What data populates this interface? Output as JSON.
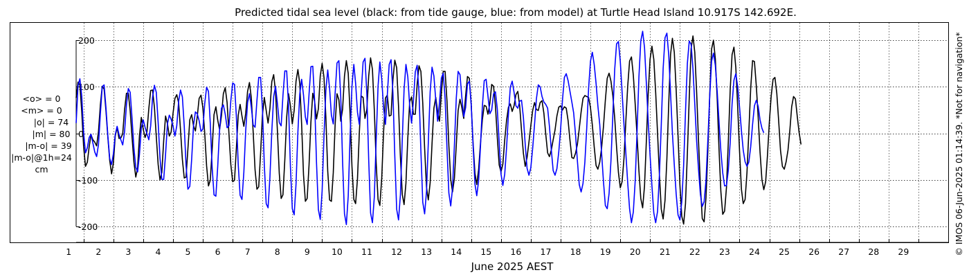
{
  "chart_data": {
    "type": "line",
    "title": "Predicted tidal sea level (black: from tide gauge, blue: from model) at Turtle Head Island 10.917S 142.692E.",
    "xlabel": "June 2025 AEST",
    "ylabel": "",
    "xlim": [
      0.75,
      30
    ],
    "ylim": [
      -200,
      200
    ],
    "y_ticks": [
      "200",
      "100",
      "0",
      "-100",
      "-200"
    ],
    "x_ticks": [
      "1",
      "2",
      "3",
      "4",
      "5",
      "6",
      "7",
      "8",
      "9",
      "10",
      "11",
      "12",
      "13",
      "14",
      "15",
      "16",
      "17",
      "18",
      "19",
      "20",
      "21",
      "22",
      "23",
      "24",
      "25",
      "26",
      "27",
      "28",
      "29"
    ],
    "grid": true,
    "series": [
      {
        "name": "from tide gauge",
        "color": "#000000",
        "t0": 0.75,
        "dt": 0.0625,
        "y": [
          76,
          110,
          104,
          47,
          -28,
          -71,
          -62,
          -29,
          -3,
          -14,
          -19,
          -27,
          4,
          61,
          101,
          95,
          48,
          -8,
          -58,
          -87,
          -64,
          -6,
          13,
          -11,
          -10,
          -1,
          51,
          86,
          86,
          48,
          -9,
          -62,
          -94,
          -74,
          -5,
          34,
          9,
          -9,
          3,
          53,
          92,
          93,
          56,
          -7,
          -67,
          -100,
          -84,
          -16,
          37,
          21,
          -6,
          3,
          43,
          75,
          83,
          65,
          7,
          -56,
          -96,
          -94,
          -33,
          29,
          40,
          16,
          5,
          36,
          75,
          82,
          55,
          0,
          -70,
          -113,
          -101,
          -35,
          40,
          57,
          28,
          8,
          38,
          85,
          98,
          66,
          -1,
          -67,
          -104,
          -101,
          -32,
          39,
          62,
          37,
          15,
          43,
          90,
          109,
          76,
          2,
          -78,
          -120,
          -115,
          -43,
          40,
          77,
          49,
          22,
          53,
          111,
          126,
          89,
          5,
          -86,
          -140,
          -132,
          -57,
          35,
          85,
          59,
          20,
          49,
          112,
          137,
          107,
          19,
          -89,
          -146,
          -140,
          -68,
          24,
          86,
          68,
          31,
          53,
          123,
          150,
          120,
          35,
          -81,
          -143,
          -146,
          -85,
          19,
          85,
          72,
          26,
          52,
          123,
          156,
          129,
          42,
          -71,
          -142,
          -151,
          -97,
          3,
          80,
          77,
          32,
          51,
          123,
          162,
          137,
          50,
          -64,
          -142,
          -155,
          -97,
          3,
          76,
          82,
          37,
          39,
          115,
          157,
          141,
          58,
          -51,
          -131,
          -153,
          -107,
          -10,
          68,
          78,
          41,
          41,
          106,
          145,
          133,
          65,
          -32,
          -116,
          -143,
          -106,
          -22,
          54,
          77,
          46,
          26,
          87,
          133,
          133,
          69,
          -26,
          -99,
          -126,
          -97,
          -26,
          49,
          73,
          55,
          32,
          80,
          122,
          118,
          61,
          -21,
          -86,
          -110,
          -78,
          -21,
          29,
          60,
          58,
          41,
          64,
          105,
          101,
          59,
          -9,
          -68,
          -83,
          -66,
          -14,
          28,
          56,
          63,
          47,
          59,
          83,
          90,
          59,
          6,
          -43,
          -71,
          -52,
          -19,
          16,
          49,
          66,
          51,
          49,
          66,
          70,
          43,
          -2,
          -42,
          -50,
          -36,
          -14,
          7,
          37,
          56,
          59,
          50,
          57,
          54,
          27,
          -15,
          -52,
          -54,
          -43,
          -24,
          10,
          46,
          75,
          81,
          79,
          77,
          55,
          18,
          -29,
          -69,
          -77,
          -62,
          -31,
          15,
          71,
          118,
          129,
          112,
          81,
          33,
          -29,
          -84,
          -117,
          -104,
          -54,
          26,
          101,
          155,
          164,
          125,
          63,
          -5,
          -80,
          -140,
          -160,
          -113,
          -18,
          85,
          159,
          187,
          159,
          88,
          1,
          -88,
          -163,
          -184,
          -144,
          -55,
          65,
          169,
          204,
          174,
          94,
          -4,
          -110,
          -178,
          -195,
          -151,
          -43,
          76,
          182,
          209,
          174,
          88,
          -16,
          -111,
          -183,
          -190,
          -138,
          -38,
          83,
          181,
          200,
          160,
          74,
          -33,
          -125,
          -174,
          -167,
          -116,
          -17,
          94,
          169,
          185,
          141,
          57,
          -39,
          -120,
          -151,
          -142,
          -85,
          3,
          97,
          156,
          154,
          102,
          35,
          -40,
          -99,
          -121,
          -104,
          -48,
          23,
          80,
          116,
          120,
          86,
          27,
          -37,
          -71,
          -77,
          -61,
          -36,
          7,
          57,
          79,
          74,
          36,
          1,
          -24
        ]
      },
      {
        "name": "from model",
        "color": "#0000ff",
        "t0": 0.75,
        "dt": 0.0625,
        "y": [
          22,
          102,
          117,
          80,
          2,
          -42,
          -31,
          -9,
          -2,
          -21,
          -40,
          -50,
          -24,
          42,
          100,
          104,
          55,
          -5,
          -54,
          -67,
          -44,
          -3,
          15,
          -2,
          -14,
          -25,
          4,
          61,
          96,
          88,
          32,
          -32,
          -73,
          -83,
          -45,
          12,
          29,
          13,
          -1,
          -14,
          16,
          77,
          103,
          88,
          23,
          -54,
          -99,
          -99,
          -45,
          20,
          39,
          30,
          16,
          -6,
          16,
          69,
          93,
          78,
          15,
          -69,
          -120,
          -114,
          -56,
          17,
          46,
          42,
          27,
          4,
          9,
          64,
          99,
          90,
          22,
          -73,
          -132,
          -135,
          -70,
          9,
          54,
          61,
          41,
          12,
          16,
          70,
          108,
          105,
          36,
          -67,
          -133,
          -142,
          -84,
          6,
          66,
          85,
          56,
          18,
          13,
          70,
          120,
          120,
          52,
          -69,
          -151,
          -160,
          -94,
          4,
          79,
          101,
          64,
          23,
          16,
          81,
          134,
          134,
          58,
          -72,
          -162,
          -175,
          -109,
          3,
          84,
          116,
          82,
          35,
          19,
          84,
          143,
          144,
          69,
          -64,
          -164,
          -185,
          -124,
          -5,
          92,
          136,
          96,
          39,
          20,
          86,
          151,
          156,
          78,
          -62,
          -173,
          -196,
          -135,
          -6,
          101,
          148,
          107,
          45,
          19,
          88,
          153,
          161,
          85,
          -57,
          -171,
          -192,
          -137,
          -14,
          101,
          153,
          117,
          54,
          19,
          83,
          148,
          158,
          87,
          -49,
          -163,
          -186,
          -132,
          -14,
          94,
          148,
          121,
          59,
          22,
          70,
          132,
          146,
          87,
          -38,
          -148,
          -173,
          -125,
          -21,
          89,
          142,
          123,
          71,
          26,
          67,
          119,
          129,
          74,
          -32,
          -128,
          -156,
          -118,
          -26,
          75,
          133,
          126,
          77,
          36,
          55,
          106,
          112,
          62,
          -25,
          -109,
          -134,
          -102,
          -28,
          57,
          113,
          116,
          80,
          42,
          50,
          85,
          89,
          52,
          -20,
          -87,
          -112,
          -88,
          -30,
          41,
          99,
          112,
          88,
          59,
          54,
          69,
          71,
          34,
          -23,
          -75,
          -90,
          -74,
          -32,
          19,
          74,
          104,
          100,
          79,
          67,
          62,
          54,
          15,
          -35,
          -80,
          -90,
          -76,
          -40,
          9,
          72,
          120,
          128,
          113,
          90,
          67,
          44,
          -2,
          -59,
          -110,
          -126,
          -108,
          -62,
          11,
          96,
          155,
          174,
          148,
          107,
          59,
          19,
          -43,
          -104,
          -155,
          -162,
          -129,
          -59,
          39,
          137,
          192,
          197,
          154,
          88,
          19,
          -42,
          -106,
          -162,
          -192,
          -169,
          -103,
          3,
          121,
          198,
          219,
          184,
          109,
          26,
          -47,
          -113,
          -171,
          -192,
          -168,
          -90,
          18,
          139,
          205,
          215,
          168,
          86,
          0,
          -68,
          -130,
          -175,
          -186,
          -147,
          -69,
          46,
          150,
          198,
          191,
          138,
          63,
          -17,
          -77,
          -131,
          -157,
          -147,
          -101,
          -15,
          79,
          155,
          172,
          146,
          90,
          26,
          -38,
          -85,
          -113,
          -112,
          -79,
          -19,
          63,
          114,
          128,
          100,
          56,
          6,
          -36,
          -61,
          -71,
          -62,
          -29,
          19,
          59,
          71,
          58,
          29,
          11,
          1
        ]
      }
    ]
  },
  "stats": {
    "mean_obs": "<o> = 0",
    "mean_model": "<m> = 0",
    "abs_obs": "|o| = 74",
    "abs_model": "|m| = 80",
    "abs_diff": "|m-o| = 39",
    "abs_diff_1h": "|m-o|@1h=24",
    "unit": "cm"
  },
  "copyright": "© IMOS 06-Jun-2025 01:14:39. *Not for navigation*"
}
